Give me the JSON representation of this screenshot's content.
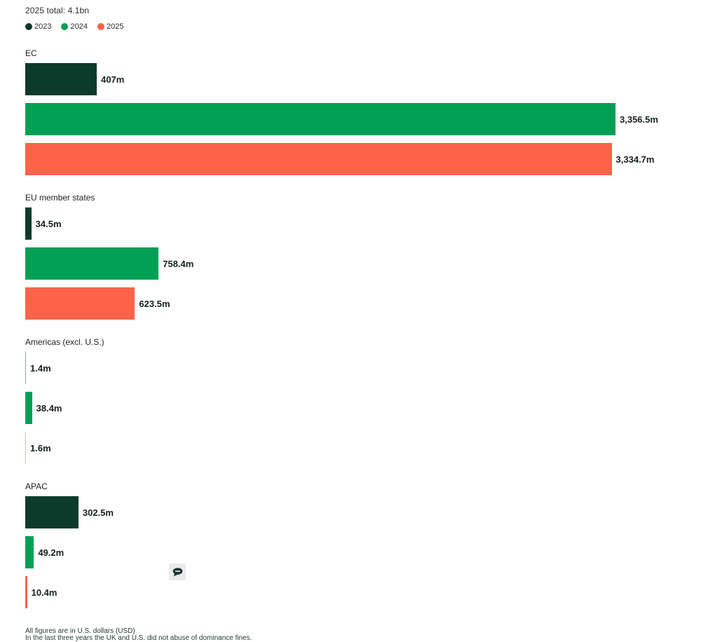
{
  "header": {
    "title": "2025 total: 4.1bn"
  },
  "legend": {
    "items": [
      {
        "label": "2023",
        "color": "#0d3b2b"
      },
      {
        "label": "2024",
        "color": "#02a055"
      },
      {
        "label": "2025",
        "color": "#fd6348"
      }
    ]
  },
  "chart_data": {
    "type": "bar",
    "orientation": "horizontal",
    "title": "2025 total: 4.1bn",
    "unit": "millions of U.S. dollars",
    "series_names": [
      "2023",
      "2024",
      "2025"
    ],
    "series_colors": [
      "#0d3b2b",
      "#02a055",
      "#fd6348"
    ],
    "max_value": 3356.5,
    "legend_position": "top",
    "grid": false,
    "groups": [
      {
        "label": "EC",
        "values": [
          407,
          3356.5,
          3334.7
        ],
        "display_values": [
          "407m",
          "3,356.5m",
          "3,334.7m"
        ]
      },
      {
        "label": "EU member states",
        "values": [
          34.5,
          758.4,
          623.5
        ],
        "display_values": [
          "34.5m",
          "758.4m",
          "623.5m"
        ]
      },
      {
        "label": "Americas (excl. U.S.)",
        "values": [
          1.4,
          38.4,
          1.6
        ],
        "display_values": [
          "1.4m",
          "38.4m",
          "1.6m"
        ]
      },
      {
        "label": "APAC",
        "values": [
          302.5,
          49.2,
          10.4
        ],
        "display_values": [
          "302.5m",
          "49.2m",
          "10.4m"
        ]
      }
    ]
  },
  "footer": {
    "line1": "All figures are in U.S. dollars (USD)",
    "line2": "In the last three years the UK and U.S. did not abuse of dominance fines."
  },
  "icons": {
    "comment": "speech-bubble-icon"
  }
}
